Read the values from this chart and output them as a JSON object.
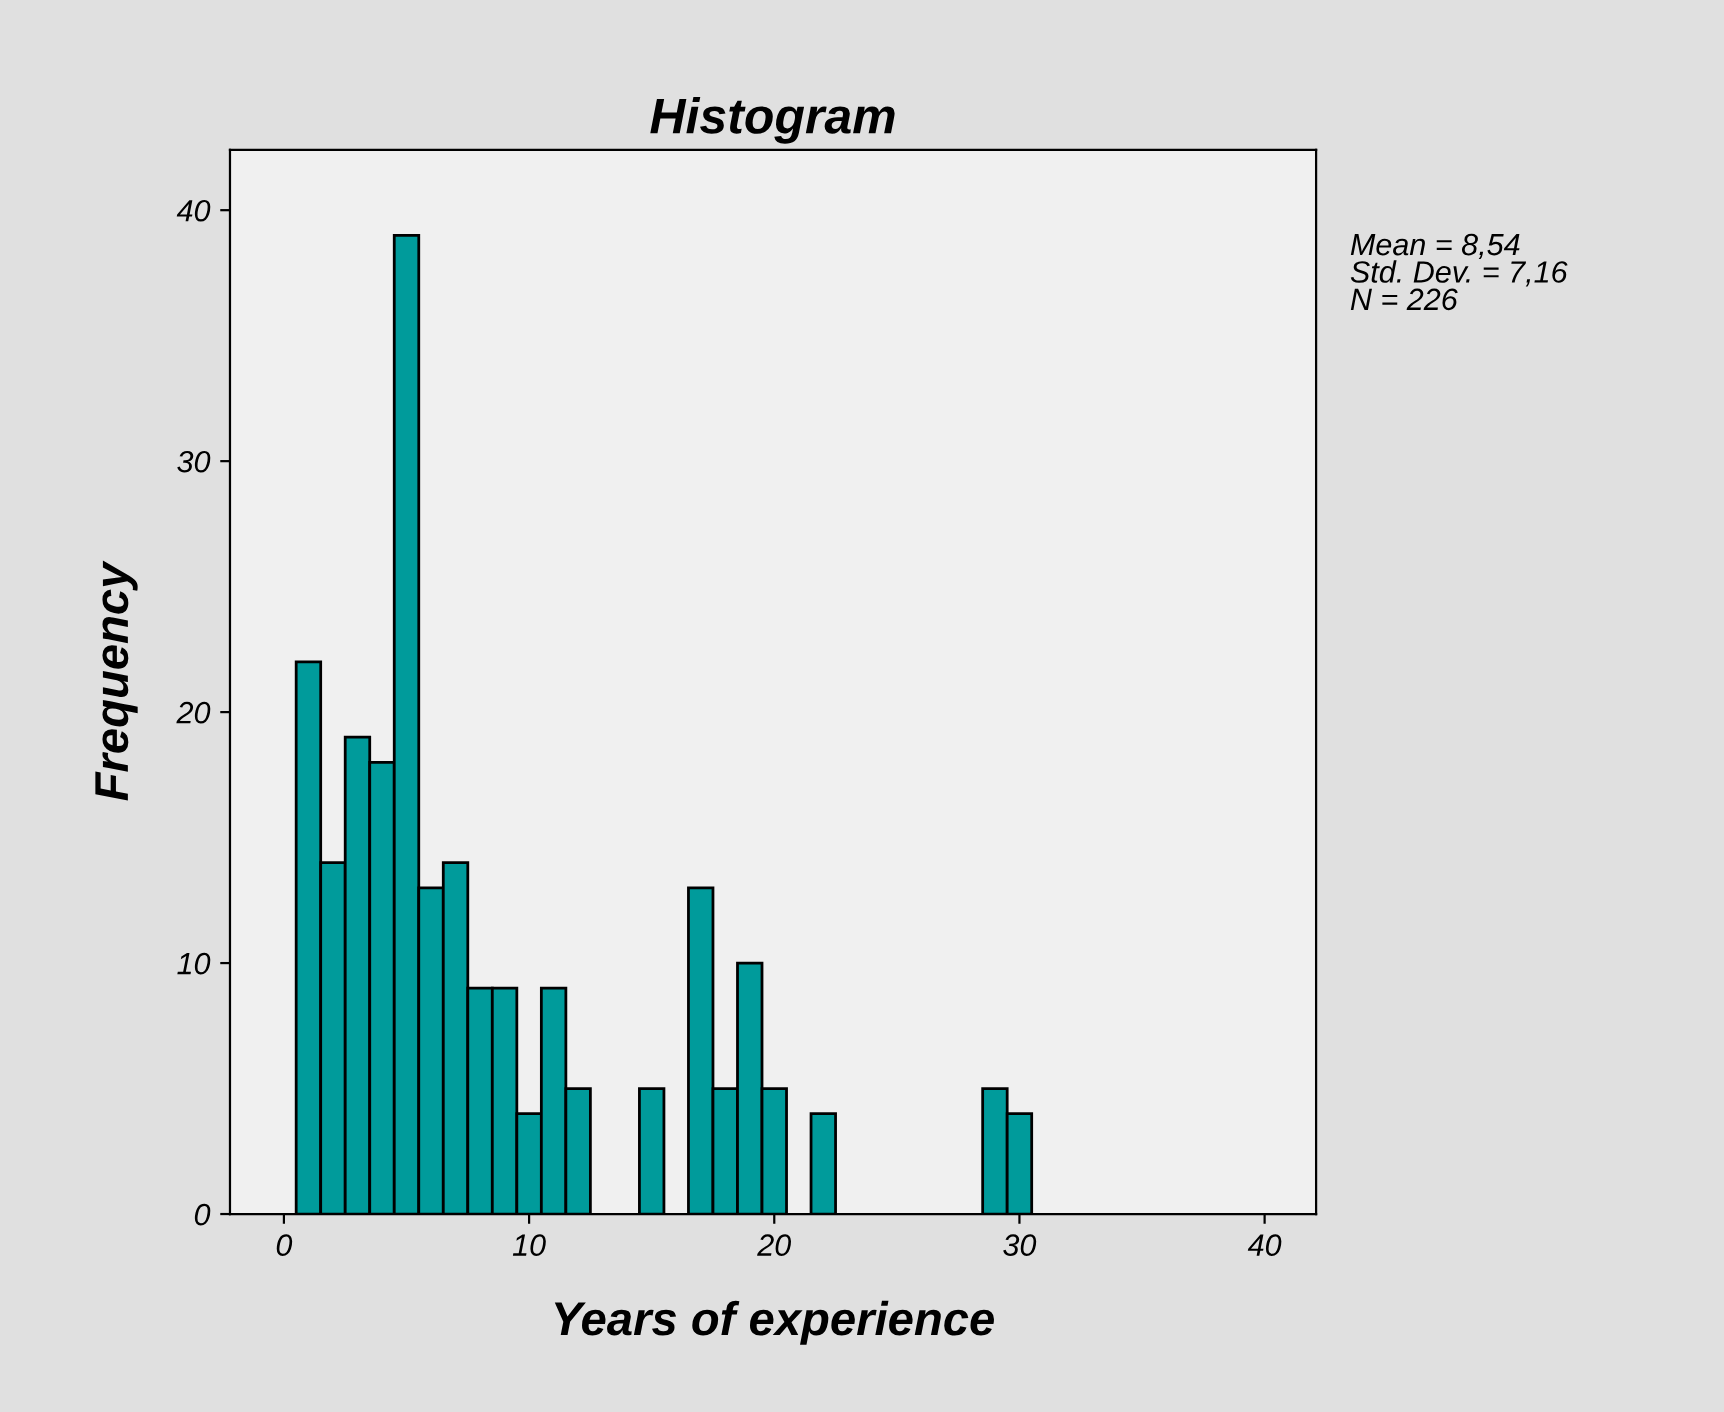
{
  "chart_data": {
    "type": "histogram",
    "title": "Histogram",
    "xlabel": "Years of experience",
    "ylabel": "Frequency",
    "bins": [
      0.5,
      1.5,
      2.5,
      3.5,
      4.5,
      5.5,
      6.5,
      7.5,
      8.5,
      9.5,
      10.5,
      11.5,
      12.5,
      13.5,
      14.5,
      15.5,
      16.5,
      17.5,
      18.5,
      19.5,
      20.5,
      21.5,
      22.5,
      23.5,
      24.5,
      25.5,
      26.5,
      27.5,
      28.5,
      29.5,
      30.5
    ],
    "values": [
      22,
      14,
      19,
      18,
      39,
      13,
      14,
      9,
      9,
      4,
      9,
      5,
      0,
      0,
      5,
      0,
      13,
      5,
      10,
      5,
      0,
      4,
      0,
      0,
      0,
      0,
      0,
      0,
      5,
      4
    ],
    "color": "#009b9b",
    "xlim": [
      -2.2,
      42.1
    ],
    "xticks": [
      0,
      10,
      20,
      30,
      40
    ],
    "ylim": [
      0,
      42.4
    ],
    "yticks": [
      0,
      10,
      20,
      30,
      40
    ],
    "grid": false,
    "legend": false,
    "annotations": [
      "Mean = 8,54\nStd. Dev. = 7,16\nN = 226"
    ]
  }
}
